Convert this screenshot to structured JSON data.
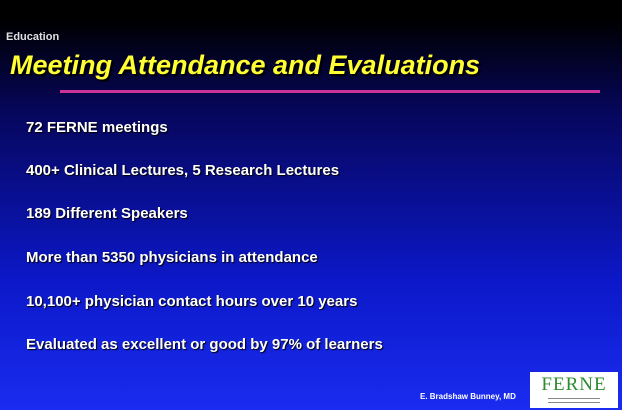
{
  "header": {
    "section": "Education",
    "title": "Meeting Attendance and Evaluations"
  },
  "items": [
    "72 FERNE meetings",
    "400+ Clinical Lectures, 5 Research Lectures",
    "189 Different Speakers",
    "More than 5350 physicians in attendance",
    "10,100+ physician contact hours over 10 years",
    "Evaluated as excellent or good by 97% of learners"
  ],
  "footer": {
    "author": "E. Bradshaw Bunney, MD",
    "logo": "FERNE"
  }
}
